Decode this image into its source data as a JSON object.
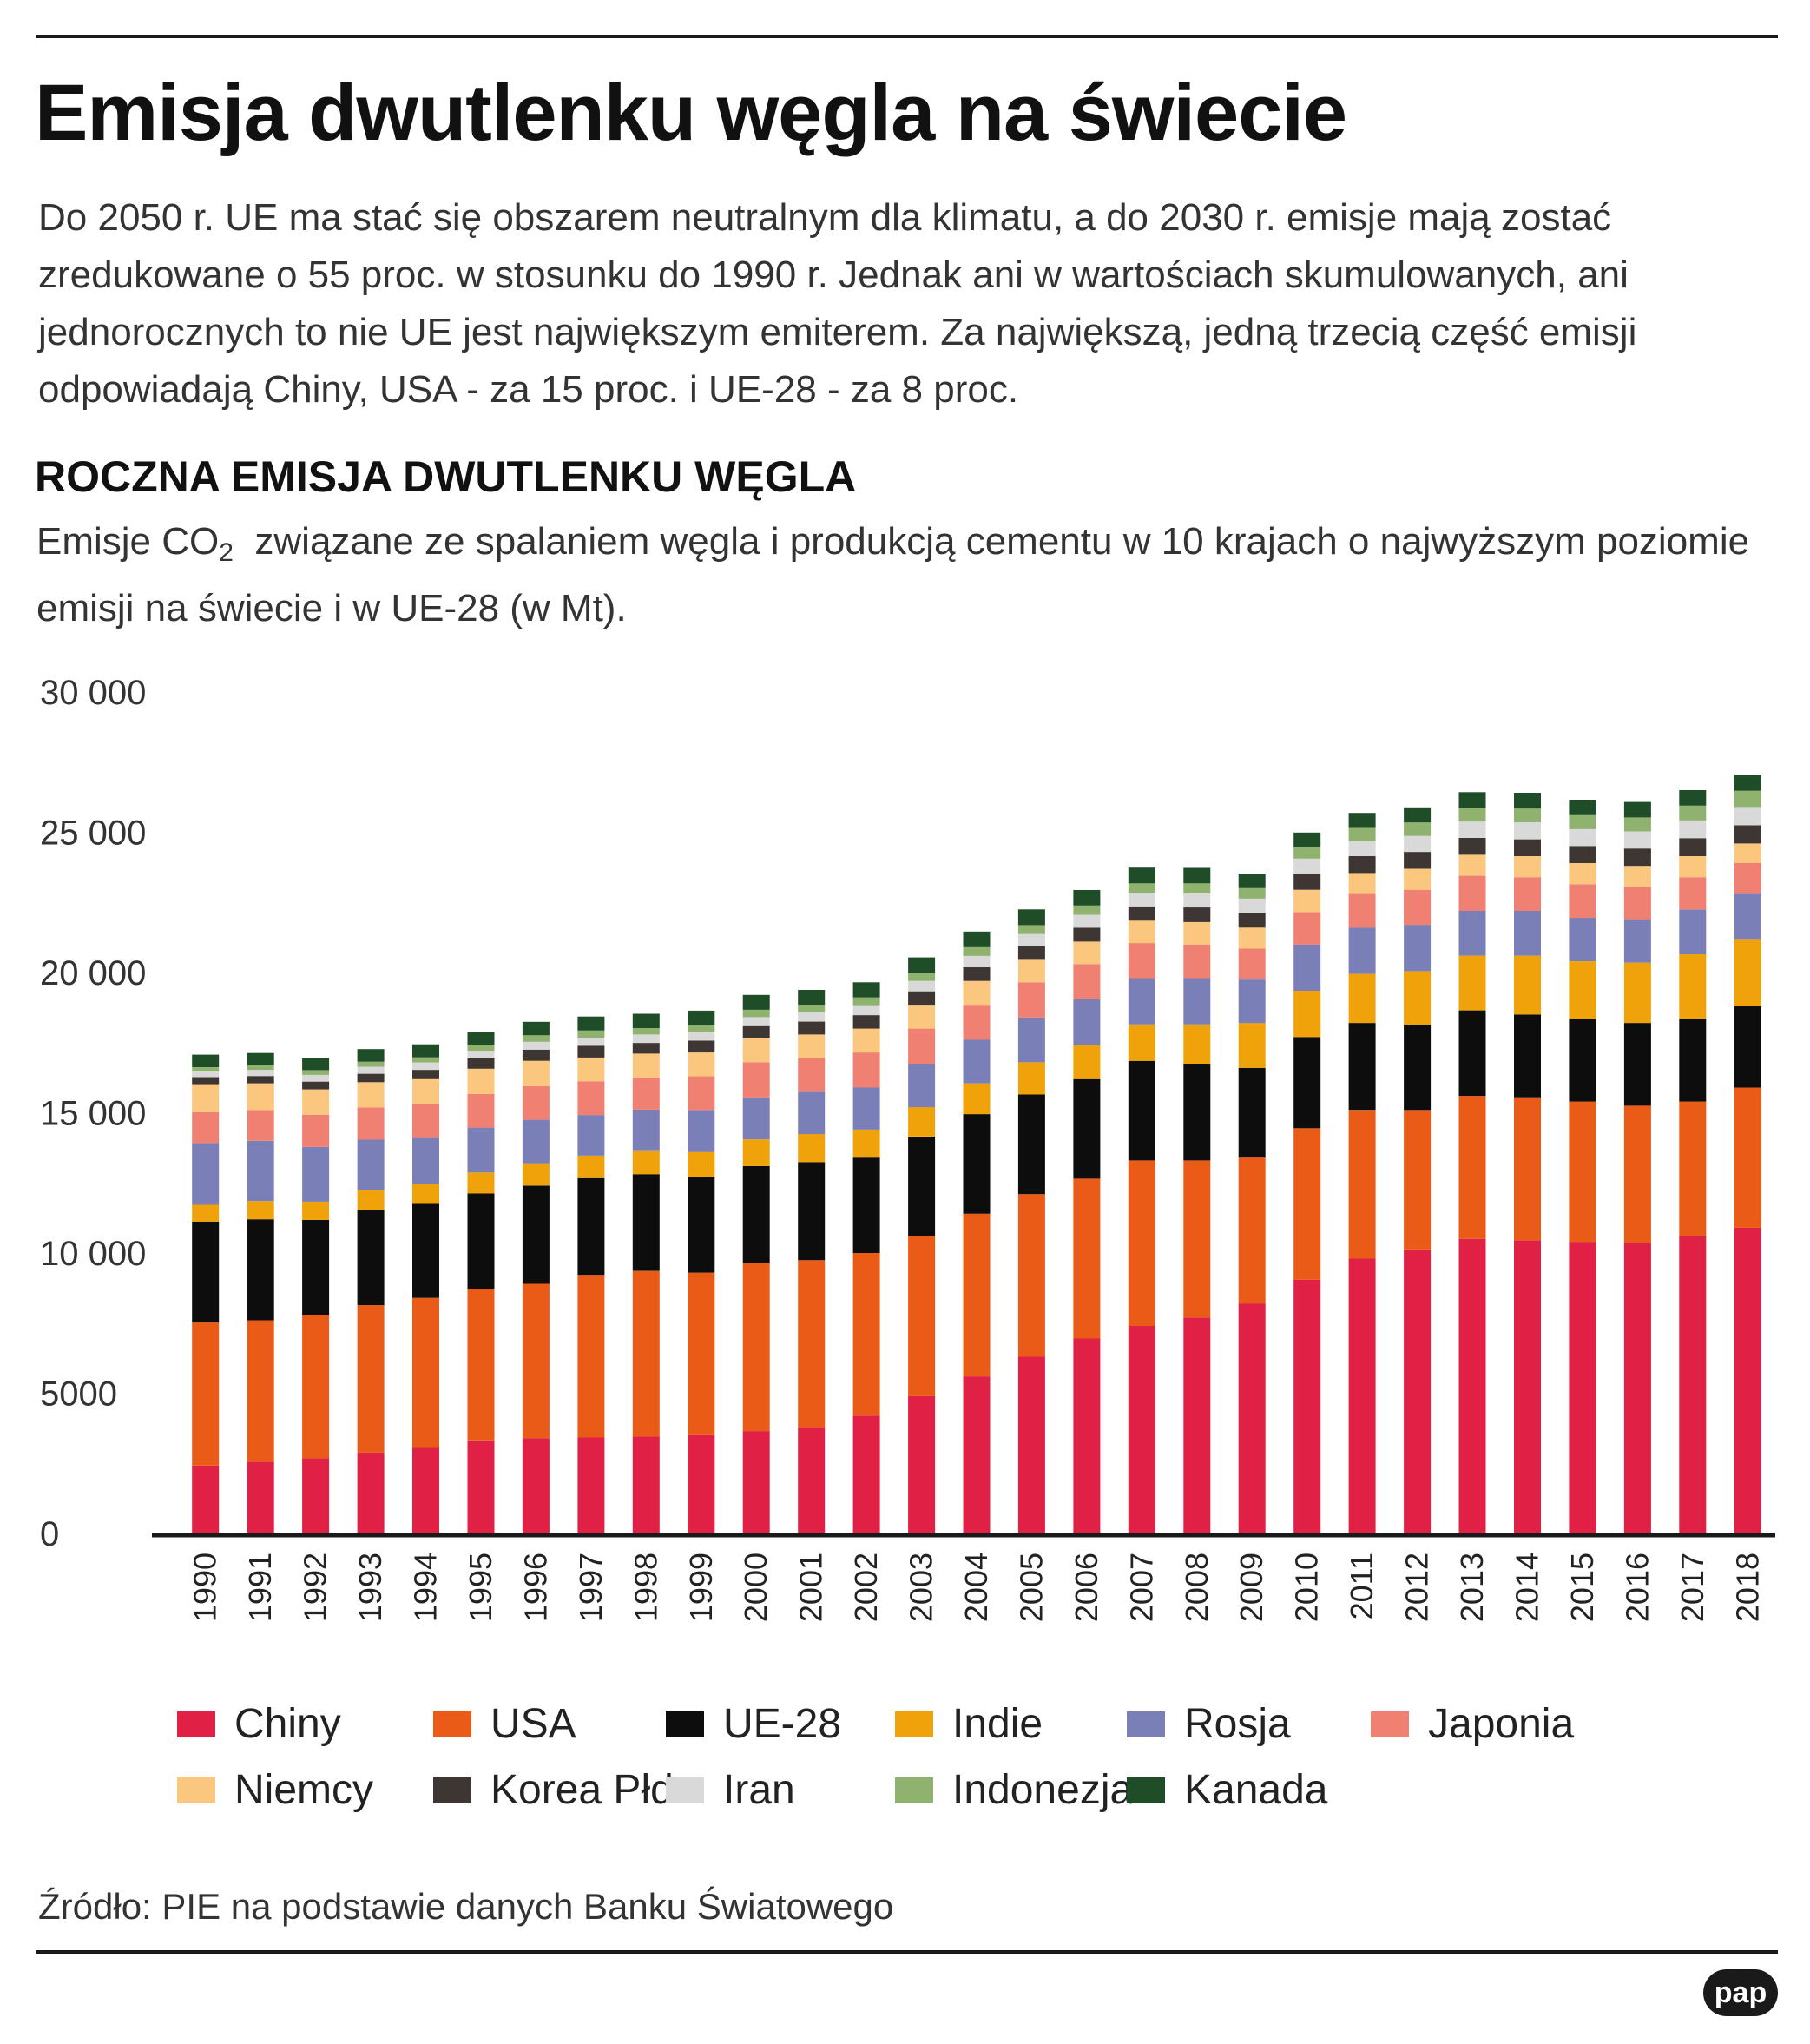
{
  "header": {
    "title": "Emisja dwutlenku węgla na świecie",
    "intro": "Do 2050 r. UE ma stać się obszarem neutralnym dla klimatu, a do 2030 r. emisje mają zostać zredukowane o 55 proc. w stosunku do 1990 r. Jednak ani w wartościach skumulowanych, ani jednorocznych to nie UE jest największym emiterem. Za największą, jedną trzecią część emisji odpowiadają Chiny, USA - za 15 proc. i UE-28 - za 8 proc."
  },
  "subheader": {
    "title": "ROCZNA EMISJA DWUTLENKU WĘGLA",
    "desc_pre": "Emisje CO",
    "desc_sub": "2",
    "desc_post": "  związane ze spalaniem węgla i produkcją cementu w 10 krajach o najwyższym poziomie emisji na świecie i w UE-28 (w Mt)."
  },
  "footer": {
    "source": "Źródło: PIE na podstawie danych Banku Światowego",
    "logo": "pap"
  },
  "chart_data": {
    "type": "bar",
    "stacked": true,
    "title": "ROCZNA EMISJA DWUTLENKU WĘGLA",
    "xlabel": "",
    "ylabel": "Mt",
    "ylim": [
      0,
      30000
    ],
    "yticks": [
      0,
      5000,
      10000,
      15000,
      20000,
      25000,
      30000
    ],
    "ytick_labels": [
      "0",
      "5000",
      "10 000",
      "15 000",
      "20 000",
      "25 000",
      "30 000"
    ],
    "grid": false,
    "legend_position": "bottom",
    "categories": [
      "1990",
      "1991",
      "1992",
      "1993",
      "1994",
      "1995",
      "1996",
      "1997",
      "1998",
      "1999",
      "2000",
      "2001",
      "2002",
      "2003",
      "2004",
      "2005",
      "2006",
      "2007",
      "2008",
      "2009",
      "2010",
      "2011",
      "2012",
      "2013",
      "2014",
      "2015",
      "2016",
      "2017",
      "2018"
    ],
    "series": [
      {
        "name": "Chiny",
        "color": "#e02145",
        "values": [
          2420,
          2550,
          2680,
          2890,
          3050,
          3320,
          3400,
          3420,
          3460,
          3500,
          3650,
          3790,
          4200,
          4900,
          5600,
          6300,
          6950,
          7400,
          7700,
          8200,
          9050,
          9800,
          10100,
          10500,
          10450,
          10400,
          10350,
          10600,
          10900
        ]
      },
      {
        "name": "USA",
        "color": "#ea5b18",
        "values": [
          5100,
          5050,
          5100,
          5250,
          5350,
          5400,
          5500,
          5800,
          5900,
          5800,
          6000,
          5950,
          5800,
          5700,
          5800,
          5800,
          5700,
          5900,
          5600,
          5200,
          5400,
          5300,
          5000,
          5100,
          5100,
          5000,
          4900,
          4800,
          5000
        ]
      },
      {
        "name": "UE-28",
        "color": "#0d0d0d",
        "values": [
          3600,
          3600,
          3400,
          3400,
          3350,
          3400,
          3500,
          3450,
          3450,
          3400,
          3450,
          3500,
          3400,
          3550,
          3550,
          3550,
          3550,
          3550,
          3450,
          3200,
          3250,
          3100,
          3050,
          3050,
          2950,
          2950,
          2950,
          2950,
          2900
        ]
      },
      {
        "name": "Indie",
        "color": "#f0a20a",
        "values": [
          600,
          650,
          650,
          700,
          700,
          750,
          800,
          800,
          850,
          900,
          950,
          1000,
          1000,
          1050,
          1100,
          1150,
          1200,
          1300,
          1400,
          1600,
          1650,
          1750,
          1900,
          1950,
          2100,
          2050,
          2150,
          2300,
          2400
        ]
      },
      {
        "name": "Rosja",
        "color": "#7b7fb8",
        "values": [
          2200,
          2150,
          1950,
          1800,
          1650,
          1600,
          1550,
          1450,
          1450,
          1500,
          1500,
          1500,
          1500,
          1550,
          1550,
          1600,
          1650,
          1650,
          1650,
          1550,
          1650,
          1650,
          1650,
          1600,
          1600,
          1550,
          1550,
          1600,
          1600
        ]
      },
      {
        "name": "Japonia",
        "color": "#ef8072",
        "values": [
          1100,
          1100,
          1150,
          1150,
          1200,
          1200,
          1200,
          1200,
          1150,
          1200,
          1250,
          1200,
          1250,
          1250,
          1250,
          1250,
          1250,
          1250,
          1200,
          1100,
          1150,
          1200,
          1250,
          1250,
          1200,
          1200,
          1150,
          1150,
          1100
        ]
      },
      {
        "name": "Niemcy",
        "color": "#fbc67e",
        "values": [
          1000,
          950,
          900,
          900,
          900,
          900,
          900,
          850,
          850,
          850,
          850,
          850,
          850,
          850,
          850,
          800,
          800,
          800,
          800,
          750,
          800,
          750,
          750,
          750,
          750,
          750,
          750,
          750,
          700
        ]
      },
      {
        "name": "Korea Płd.",
        "color": "#3e3633",
        "values": [
          250,
          260,
          280,
          300,
          330,
          370,
          400,
          420,
          380,
          420,
          440,
          460,
          480,
          480,
          490,
          490,
          500,
          510,
          520,
          520,
          570,
          600,
          600,
          600,
          600,
          610,
          620,
          640,
          650
        ]
      },
      {
        "name": "Iran",
        "color": "#d9d9d9",
        "values": [
          200,
          220,
          240,
          250,
          260,
          270,
          280,
          290,
          300,
          310,
          320,
          330,
          350,
          370,
          400,
          430,
          460,
          480,
          500,
          520,
          540,
          550,
          570,
          580,
          600,
          600,
          610,
          630,
          650
        ]
      },
      {
        "name": "Indonezja",
        "color": "#8fb26e",
        "values": [
          150,
          160,
          170,
          180,
          190,
          210,
          230,
          250,
          230,
          240,
          260,
          270,
          280,
          290,
          310,
          320,
          330,
          340,
          360,
          370,
          400,
          450,
          480,
          490,
          500,
          500,
          500,
          530,
          580
        ]
      },
      {
        "name": "Kanada",
        "color": "#1f4d27",
        "values": [
          450,
          440,
          440,
          450,
          460,
          470,
          480,
          500,
          510,
          520,
          530,
          530,
          540,
          550,
          560,
          560,
          550,
          560,
          550,
          520,
          530,
          540,
          540,
          560,
          560,
          550,
          550,
          550,
          560
        ]
      }
    ]
  }
}
